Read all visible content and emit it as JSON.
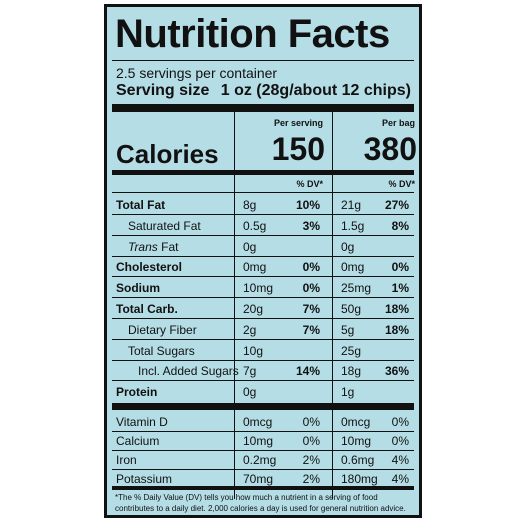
{
  "title": "Nutrition Facts",
  "servings_per_container": "2.5 servings per container",
  "serving_size": {
    "label": "Serving size",
    "value": "1 oz (28g/about 12 chips)"
  },
  "columns": {
    "per_serving": "Per serving",
    "per_bag": "Per bag"
  },
  "calories": {
    "label": "Calories",
    "per_serving": "150",
    "per_bag": "380"
  },
  "dv_header": "% DV*",
  "nutrients": [
    {
      "name": "Total Fat",
      "bold": true,
      "serving_amount": "8g",
      "serving_dv": "10%",
      "bag_amount": "21g",
      "bag_dv": "27%",
      "dv_bold": true
    },
    {
      "name": "Saturated Fat",
      "indent": 1,
      "serving_amount": "0.5g",
      "serving_dv": "3%",
      "bag_amount": "1.5g",
      "bag_dv": "8%",
      "dv_bold": true
    },
    {
      "name": "Trans Fat",
      "indent": 1,
      "italic_prefix": "Trans",
      "serving_amount": "0g",
      "serving_dv": "",
      "bag_amount": "0g",
      "bag_dv": ""
    },
    {
      "name": "Cholesterol",
      "bold": true,
      "serving_amount": "0mg",
      "serving_dv": "0%",
      "bag_amount": "0mg",
      "bag_dv": "0%",
      "dv_bold": true
    },
    {
      "name": "Sodium",
      "bold": true,
      "serving_amount": "10mg",
      "serving_dv": "0%",
      "bag_amount": "25mg",
      "bag_dv": "1%",
      "dv_bold": true
    },
    {
      "name": "Total Carb.",
      "bold": true,
      "serving_amount": "20g",
      "serving_dv": "7%",
      "bag_amount": "50g",
      "bag_dv": "18%",
      "dv_bold": true
    },
    {
      "name": "Dietary Fiber",
      "indent": 1,
      "serving_amount": "2g",
      "serving_dv": "7%",
      "bag_amount": "5g",
      "bag_dv": "18%",
      "dv_bold": true
    },
    {
      "name": "Total Sugars",
      "indent": 1,
      "serving_amount": "10g",
      "serving_dv": "",
      "bag_amount": "25g",
      "bag_dv": ""
    },
    {
      "name": "Incl. Added Sugars",
      "indent": 2,
      "serving_amount": "7g",
      "serving_dv": "14%",
      "bag_amount": "18g",
      "bag_dv": "36%",
      "dv_bold": true
    },
    {
      "name": "Protein",
      "bold": true,
      "serving_amount": "0g",
      "serving_dv": "",
      "bag_amount": "1g",
      "bag_dv": ""
    }
  ],
  "vitamins": [
    {
      "name": "Vitamin D",
      "serving_amount": "0mcg",
      "serving_dv": "0%",
      "bag_amount": "0mcg",
      "bag_dv": "0%"
    },
    {
      "name": "Calcium",
      "serving_amount": "10mg",
      "serving_dv": "0%",
      "bag_amount": "10mg",
      "bag_dv": "0%"
    },
    {
      "name": "Iron",
      "serving_amount": "0.2mg",
      "serving_dv": "2%",
      "bag_amount": "0.6mg",
      "bag_dv": "4%"
    },
    {
      "name": "Potassium",
      "serving_amount": "70mg",
      "serving_dv": "2%",
      "bag_amount": "180mg",
      "bag_dv": "4%"
    }
  ],
  "footnote": "*The % Daily Value (DV) tells you how much a nutrient in a serving of food contributes to a daily diet. 2,000 calories a day is used for general nutrition advice.",
  "colors": {
    "background": "#b5dde6",
    "ink": "#111111"
  }
}
